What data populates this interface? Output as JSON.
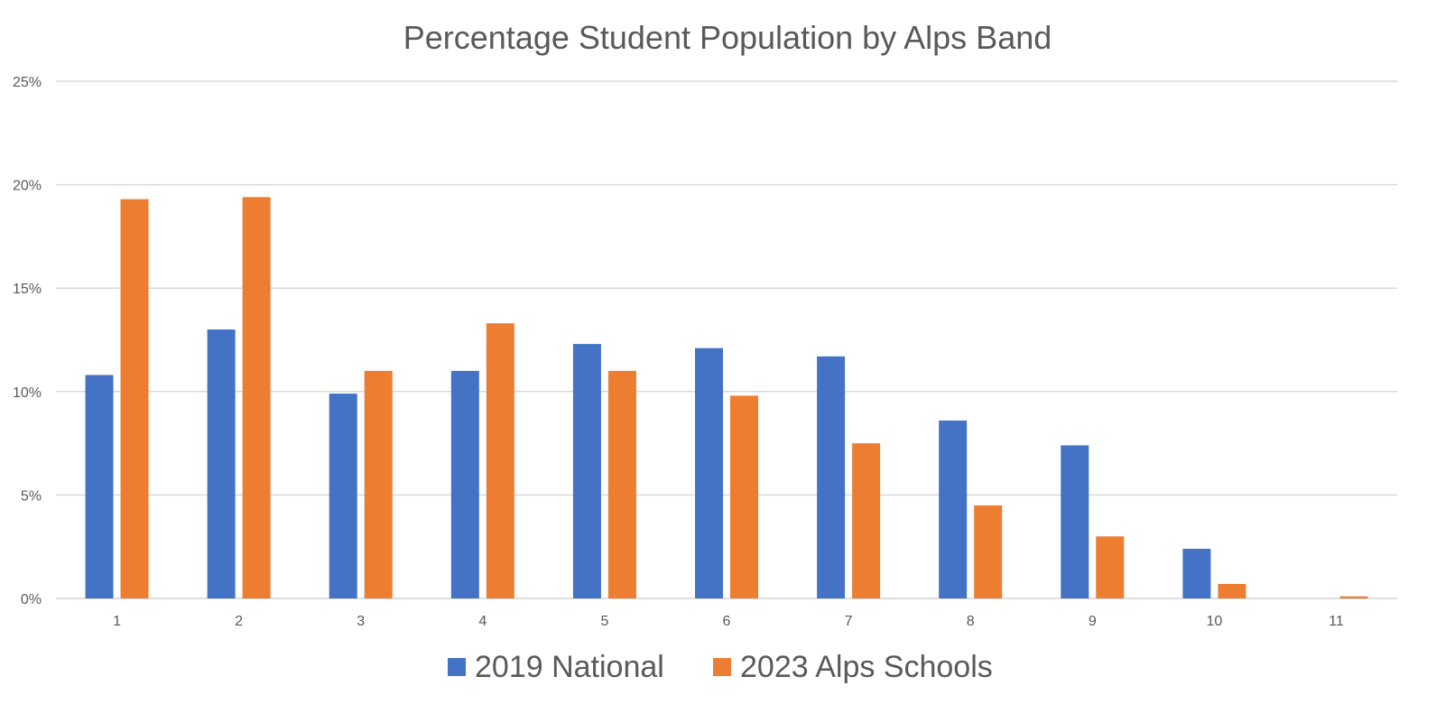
{
  "chart_data": {
    "type": "bar",
    "title": "Percentage Student Population by Alps Band",
    "xlabel": "",
    "ylabel": "",
    "categories": [
      "1",
      "2",
      "3",
      "4",
      "5",
      "6",
      "7",
      "8",
      "9",
      "10",
      "11"
    ],
    "series": [
      {
        "name": "2019 National",
        "color": "#4472C4",
        "values": [
          10.8,
          13.0,
          9.9,
          11.0,
          12.3,
          12.1,
          11.7,
          8.6,
          7.4,
          2.4,
          null
        ]
      },
      {
        "name": "2023 Alps Schools",
        "color": "#ED7D31",
        "values": [
          19.3,
          19.4,
          11.0,
          13.3,
          11.0,
          9.8,
          7.5,
          4.5,
          3.0,
          0.7,
          0.1
        ]
      }
    ],
    "ylim": [
      0,
      25
    ],
    "yticks": [
      0,
      5,
      10,
      15,
      20,
      25
    ],
    "ytick_labels": [
      "0%",
      "5%",
      "10%",
      "15%",
      "20%",
      "25%"
    ],
    "grid": true,
    "legend_position": "bottom"
  }
}
